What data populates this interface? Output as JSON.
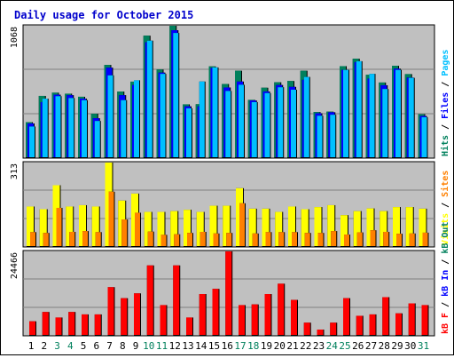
{
  "title": "Daily usage for October 2015",
  "colors": {
    "title": "#0000cc",
    "background": "#ffffff",
    "plot_bg": "#c0c0c0",
    "grid": "#808080",
    "hits": "#00805c",
    "files": "#0000ff",
    "pages": "#00c0ff",
    "visits": "#ffff00",
    "sites": "#ff8000",
    "kb": "#ff0000",
    "day_normal": "#000000",
    "day_weekend": "#00805c"
  },
  "chart_data": {
    "type": "bar",
    "categories": [
      "1",
      "2",
      "3",
      "4",
      "5",
      "6",
      "7",
      "8",
      "9",
      "10",
      "11",
      "12",
      "13",
      "14",
      "15",
      "16",
      "17",
      "18",
      "19",
      "20",
      "21",
      "22",
      "23",
      "24",
      "25",
      "26",
      "27",
      "28",
      "29",
      "30",
      "31"
    ],
    "weekend_days": [
      "3",
      "4",
      "10",
      "11",
      "17",
      "18",
      "24",
      "25",
      "31"
    ],
    "panels": [
      {
        "id": "usage",
        "ymax_label": "1068",
        "ylim": [
          0,
          1068
        ],
        "legend": [
          {
            "text": "Hits",
            "color": "#00805c"
          },
          {
            "text": "Files",
            "color": "#0000ff"
          },
          {
            "text": "Pages",
            "color": "#00c0ff"
          }
        ],
        "series": [
          {
            "name": "Hits",
            "values": [
              290,
              502,
              528,
              520,
              495,
              358,
              752,
              537,
              617,
              988,
              715,
              1068,
              434,
              435,
              740,
              598,
              705,
              470,
              568,
              612,
              622,
              705,
              372,
              375,
              742,
              802,
              672,
              610,
              745,
              678,
              355
            ]
          },
          {
            "name": "Files",
            "values": [
              280,
              452,
              512,
              508,
              480,
              322,
              730,
              508,
              590,
              935,
              690,
              1032,
              418,
              418,
              728,
              570,
              618,
              465,
              538,
              590,
              575,
              632,
              362,
              370,
              712,
              775,
              642,
              588,
              722,
              650,
              340
            ]
          },
          {
            "name": "Pages",
            "values": [
              255,
              480,
              500,
              485,
              468,
              300,
              668,
              468,
              628,
              948,
              680,
              1010,
              402,
              618,
              732,
              542,
              592,
              452,
              525,
              572,
              552,
              655,
              342,
              350,
              712,
              782,
              680,
              558,
              712,
              648,
              330
            ]
          }
        ]
      },
      {
        "id": "visits",
        "ymax_label": "313",
        "ylim": [
          0,
          313
        ],
        "legend": [
          {
            "text": "Visits",
            "color": "#ffff00"
          },
          {
            "text": "Sites",
            "color": "#ff8000"
          }
        ],
        "series": [
          {
            "name": "Visits",
            "values": [
              150,
              140,
              229,
              150,
              155,
              150,
              313,
              172,
              198,
              130,
              130,
              133,
              138,
              130,
              153,
              153,
              218,
              142,
              142,
              130,
              150,
              140,
              148,
              155,
              118,
              133,
              143,
              133,
              148,
              148,
              142
            ]
          },
          {
            "name": "Sites",
            "values": [
              55,
              52,
              145,
              56,
              59,
              55,
              205,
              102,
              127,
              57,
              45,
              47,
              52,
              56,
              50,
              52,
              162,
              50,
              55,
              55,
              55,
              52,
              52,
              59,
              46,
              54,
              62,
              56,
              49,
              50,
              53
            ]
          }
        ]
      },
      {
        "id": "kb",
        "ymax_label": "24466",
        "ylim": [
          0,
          24466
        ],
        "legend": [
          {
            "text": "kB F",
            "color": "#ff0000"
          },
          {
            "text": "kB In",
            "color": "#0000ff"
          },
          {
            "text": "kB Out",
            "color": "#00805c"
          }
        ],
        "series": [
          {
            "name": "kB F",
            "values": [
              4200,
              6900,
              5300,
              6900,
              6200,
              6200,
              14100,
              10900,
              12300,
              20400,
              8900,
              20400,
              5300,
              12100,
              13600,
              24466,
              8900,
              9100,
              12100,
              15100,
              10400,
              3800,
              1800,
              3800,
              10900,
              5800,
              6200,
              11200,
              6500,
              9400,
              8900
            ]
          }
        ]
      }
    ]
  }
}
